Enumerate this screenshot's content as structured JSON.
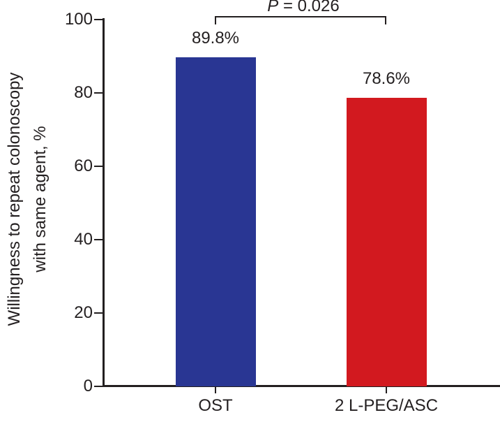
{
  "figure": {
    "background": "#ffffff",
    "text_color": "#231F20",
    "axis_color": "#231F20"
  },
  "chart_data": {
    "type": "bar",
    "categories": [
      "OST",
      "2 L-PEG/ASC"
    ],
    "values": [
      89.8,
      78.6
    ],
    "value_labels": [
      "89.8%",
      "78.6%"
    ],
    "bar_colors": [
      "#293693",
      "#D2191F"
    ],
    "ylabel": "Willingness to repeat colonoscopy with same agent, %",
    "ylabel_lines": [
      "Willingness to repeat colonoscopy",
      "with same agent, %"
    ],
    "ylim": [
      0,
      100
    ],
    "yticks": [
      0,
      20,
      40,
      60,
      80,
      100
    ],
    "grid": false,
    "annotation": {
      "text": "P = 0.026",
      "italic_part": "P",
      "rest_part": " = 0.026"
    }
  }
}
